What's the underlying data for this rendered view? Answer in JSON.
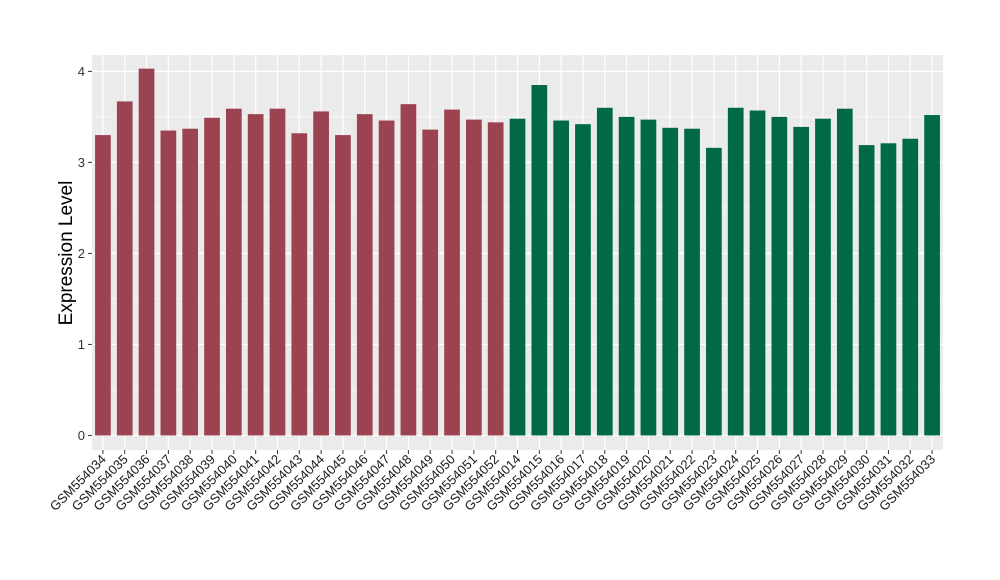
{
  "chart_data": {
    "type": "bar",
    "title": "",
    "xlabel": "",
    "ylabel": "Expression Level",
    "ylim": [
      -0.16,
      4.18
    ],
    "yticks": [
      0,
      1,
      2,
      3,
      4
    ],
    "grid": true,
    "legend": "none",
    "colors": {
      "group_a": "#9b4350",
      "group_b": "#006a48",
      "panel": "#ebebeb",
      "grid": "#ffffff"
    },
    "categories": [
      "GSM554034",
      "GSM554035",
      "GSM554036",
      "GSM554037",
      "GSM554038",
      "GSM554039",
      "GSM554040",
      "GSM554041",
      "GSM554042",
      "GSM554043",
      "GSM554044",
      "GSM554045",
      "GSM554046",
      "GSM554047",
      "GSM554048",
      "GSM554049",
      "GSM554050",
      "GSM554051",
      "GSM554052",
      "GSM554014",
      "GSM554015",
      "GSM554016",
      "GSM554017",
      "GSM554018",
      "GSM554019",
      "GSM554020",
      "GSM554021",
      "GSM554022",
      "GSM554023",
      "GSM554024",
      "GSM554025",
      "GSM554026",
      "GSM554027",
      "GSM554028",
      "GSM554029",
      "GSM554030",
      "GSM554031",
      "GSM554032",
      "GSM554033"
    ],
    "values": [
      3.3,
      3.67,
      4.03,
      3.35,
      3.37,
      3.49,
      3.59,
      3.53,
      3.59,
      3.32,
      3.56,
      3.3,
      3.53,
      3.46,
      3.64,
      3.36,
      3.58,
      3.47,
      3.44,
      3.48,
      3.85,
      3.46,
      3.42,
      3.6,
      3.5,
      3.47,
      3.38,
      3.37,
      3.16,
      3.6,
      3.57,
      3.5,
      3.39,
      3.48,
      3.59,
      3.19,
      3.21,
      3.26,
      3.52
    ],
    "groups": [
      "a",
      "a",
      "a",
      "a",
      "a",
      "a",
      "a",
      "a",
      "a",
      "a",
      "a",
      "a",
      "a",
      "a",
      "a",
      "a",
      "a",
      "a",
      "a",
      "b",
      "b",
      "b",
      "b",
      "b",
      "b",
      "b",
      "b",
      "b",
      "b",
      "b",
      "b",
      "b",
      "b",
      "b",
      "b",
      "b",
      "b",
      "b",
      "b"
    ]
  }
}
